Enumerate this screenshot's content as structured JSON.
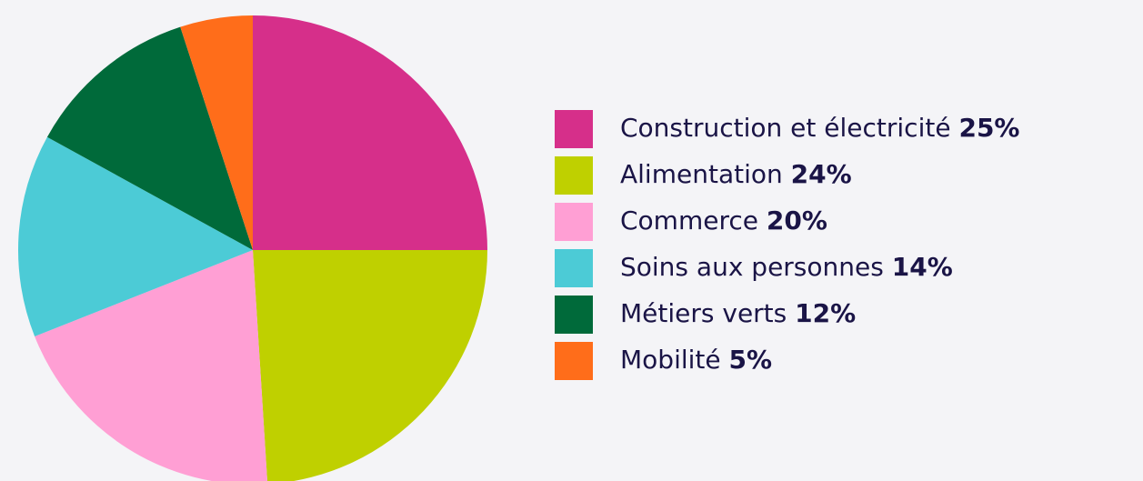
{
  "chart_data": {
    "type": "pie",
    "categories": [
      "Construction et électricité",
      "Alimentation",
      "Commerce",
      "Soins aux personnes",
      "Métiers verts",
      "Mobilité"
    ],
    "values": [
      25,
      24,
      20,
      14,
      12,
      5
    ],
    "value_labels": [
      "25%",
      "24%",
      "20%",
      "14%",
      "12%",
      "5%"
    ],
    "colors": [
      "#d62f8a",
      "#bfd000",
      "#ff9fd4",
      "#4ccbd6",
      "#006a3a",
      "#ff6d1a"
    ],
    "legend": "right"
  }
}
